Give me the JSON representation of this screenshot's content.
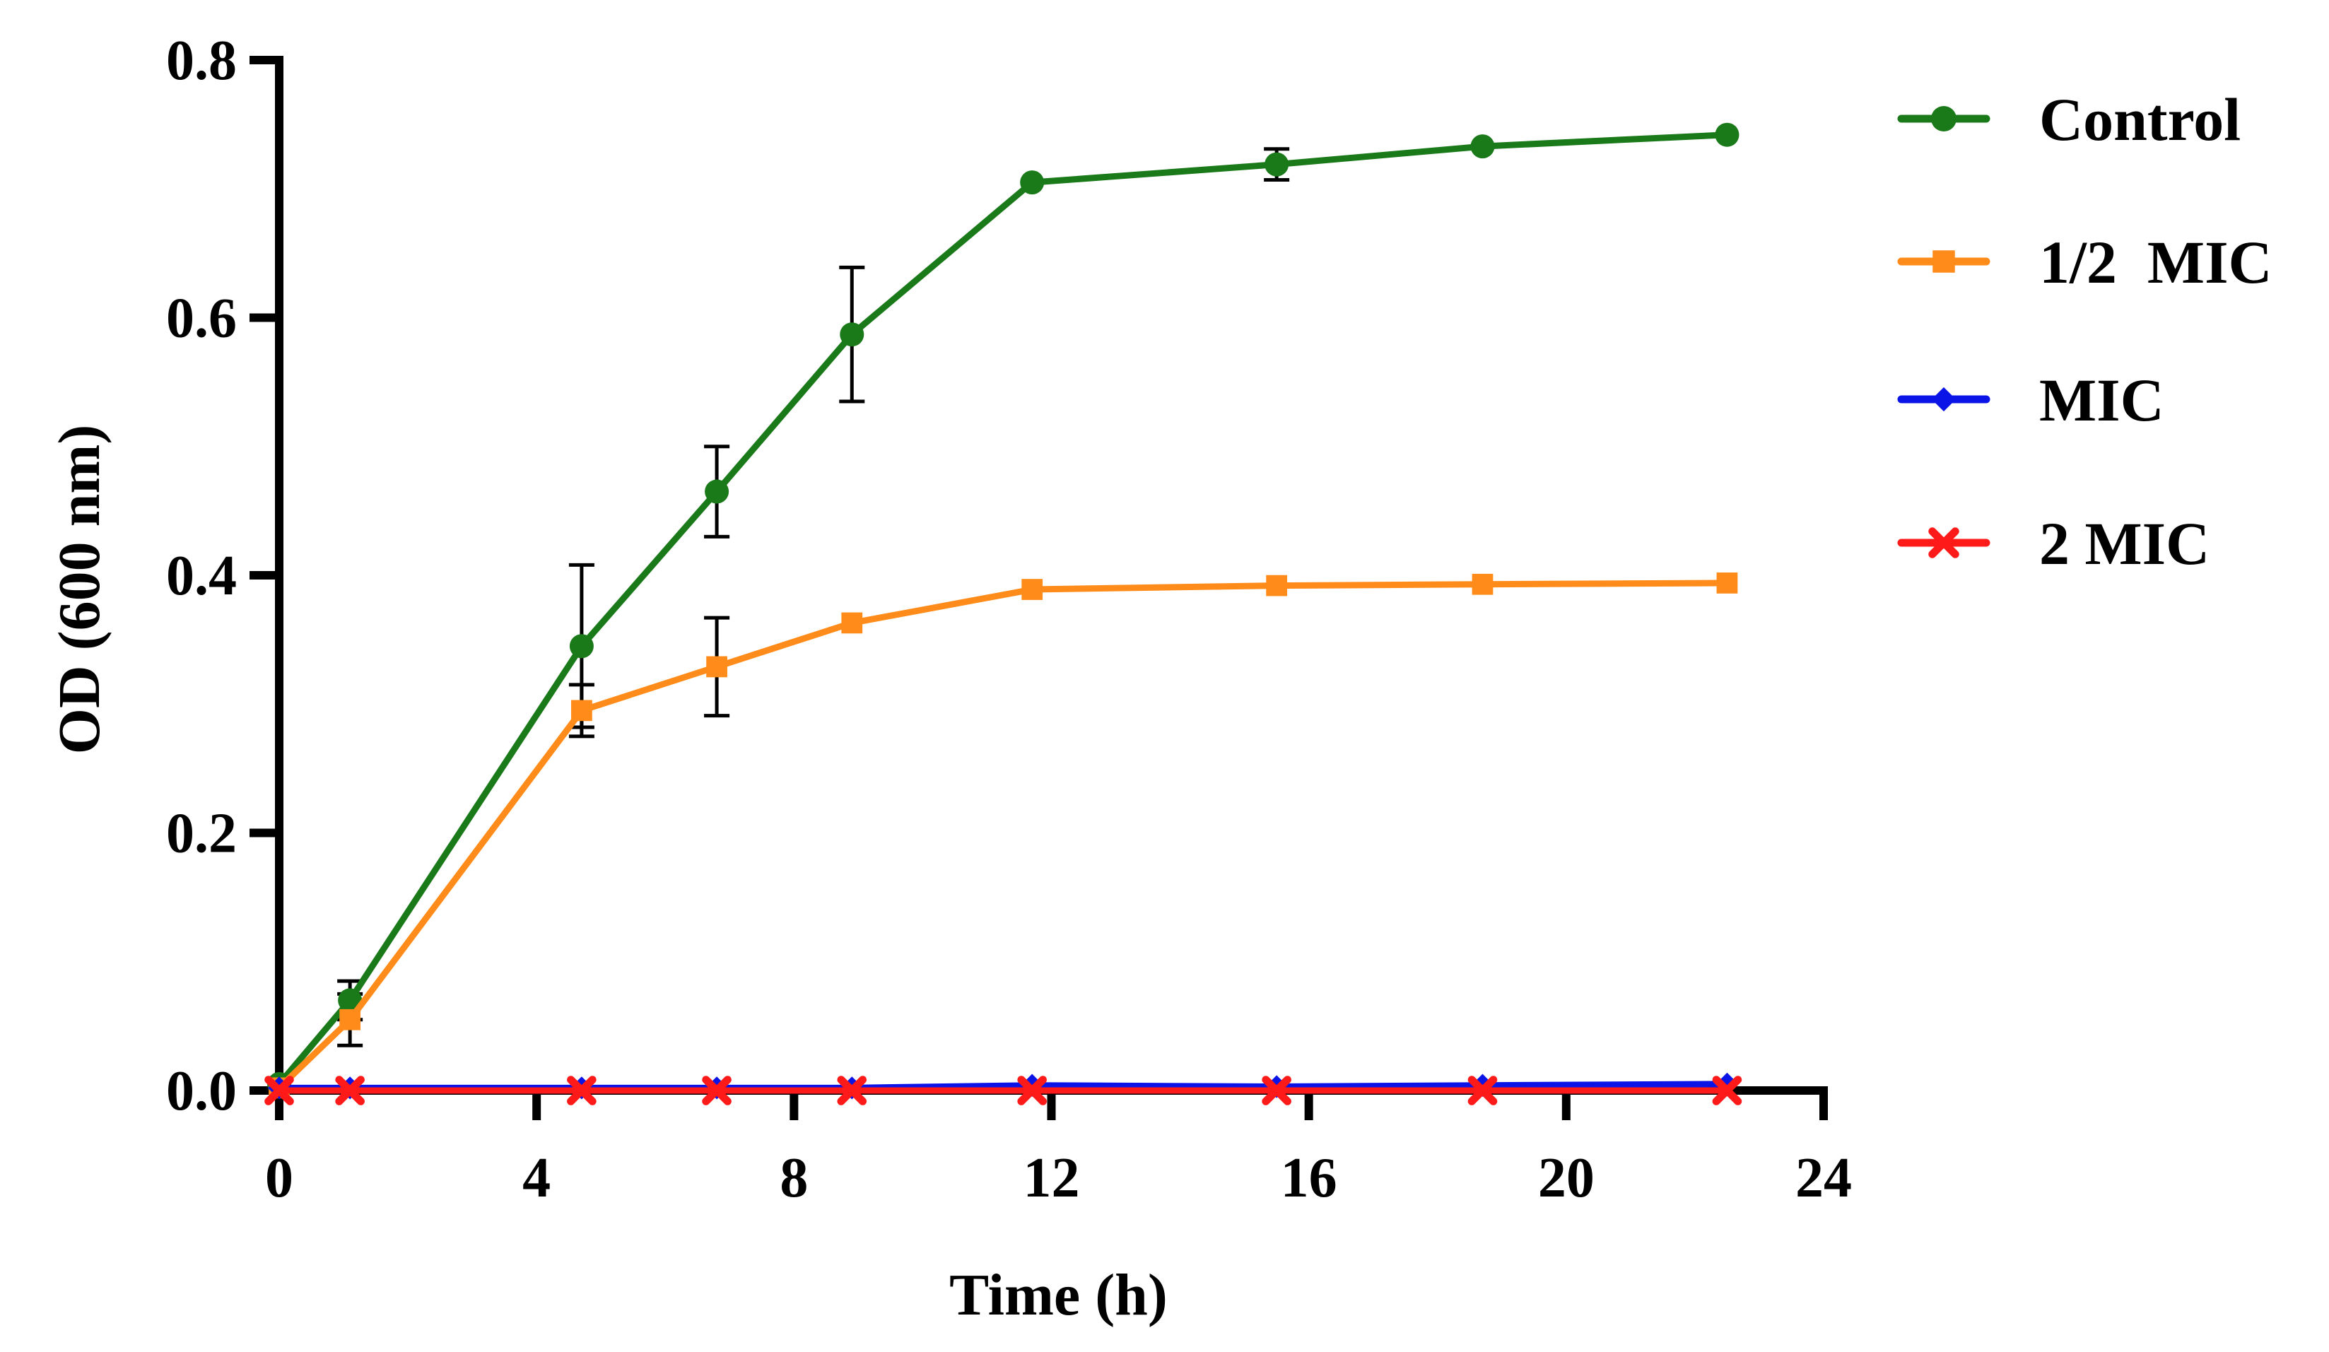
{
  "chart_data": {
    "type": "line",
    "title": "",
    "xlabel": "Time (h)",
    "ylabel": "OD (600 nm)",
    "xlim": [
      0,
      24
    ],
    "ylim": [
      0,
      0.8
    ],
    "xticks": [
      0,
      4,
      8,
      12,
      16,
      20,
      24
    ],
    "yticks": [
      0.0,
      0.2,
      0.4,
      0.6,
      0.8
    ],
    "xtick_labels": [
      "0",
      "4",
      "8",
      "12",
      "16",
      "20",
      "24"
    ],
    "ytick_labels": [
      "0.0",
      "0.2",
      "0.4",
      "0.6",
      "0.8"
    ],
    "grid": false,
    "legend_position": "right",
    "series": [
      {
        "name": "Control",
        "color": "#1a7a1a",
        "marker": "circle",
        "x": [
          0,
          1.1,
          4.7,
          6.8,
          8.9,
          11.7,
          15.5,
          18.7,
          22.5
        ],
        "y": [
          0.005,
          0.07,
          0.345,
          0.465,
          0.587,
          0.705,
          0.719,
          0.733,
          0.742
        ],
        "err": [
          0.003,
          0.015,
          0.063,
          0.035,
          0.052,
          0.004,
          0.012,
          0.004,
          0.004
        ]
      },
      {
        "name": "1/2  MIC",
        "color": "#ff8c1a",
        "marker": "square",
        "x": [
          0,
          1.1,
          4.7,
          6.8,
          8.9,
          11.7,
          15.5,
          18.7,
          22.5
        ],
        "y": [
          0.002,
          0.055,
          0.295,
          0.329,
          0.363,
          0.389,
          0.392,
          0.393,
          0.394
        ],
        "err": [
          0.002,
          0.02,
          0.02,
          0.038,
          0.005,
          0.004,
          0.004,
          0.004,
          0.004
        ]
      },
      {
        "name": "MIC",
        "color": "#0a14e6",
        "marker": "diamond",
        "x": [
          0,
          1.1,
          4.7,
          6.8,
          8.9,
          11.7,
          15.5,
          18.7,
          22.5
        ],
        "y": [
          0.002,
          0.002,
          0.002,
          0.002,
          0.002,
          0.004,
          0.003,
          0.004,
          0.005
        ],
        "err": [
          0,
          0,
          0,
          0,
          0,
          0,
          0,
          0,
          0
        ]
      },
      {
        "name": "2 MIC",
        "color": "#ff1a1a",
        "marker": "x",
        "x": [
          0,
          1.1,
          4.7,
          6.8,
          8.9,
          11.7,
          15.5,
          18.7,
          22.5
        ],
        "y": [
          0.0,
          0.0,
          0.0,
          0.0,
          0.0,
          0.0,
          0.0,
          0.0,
          0.0
        ],
        "err": [
          0,
          0,
          0,
          0,
          0,
          0,
          0,
          0,
          0
        ]
      }
    ]
  }
}
